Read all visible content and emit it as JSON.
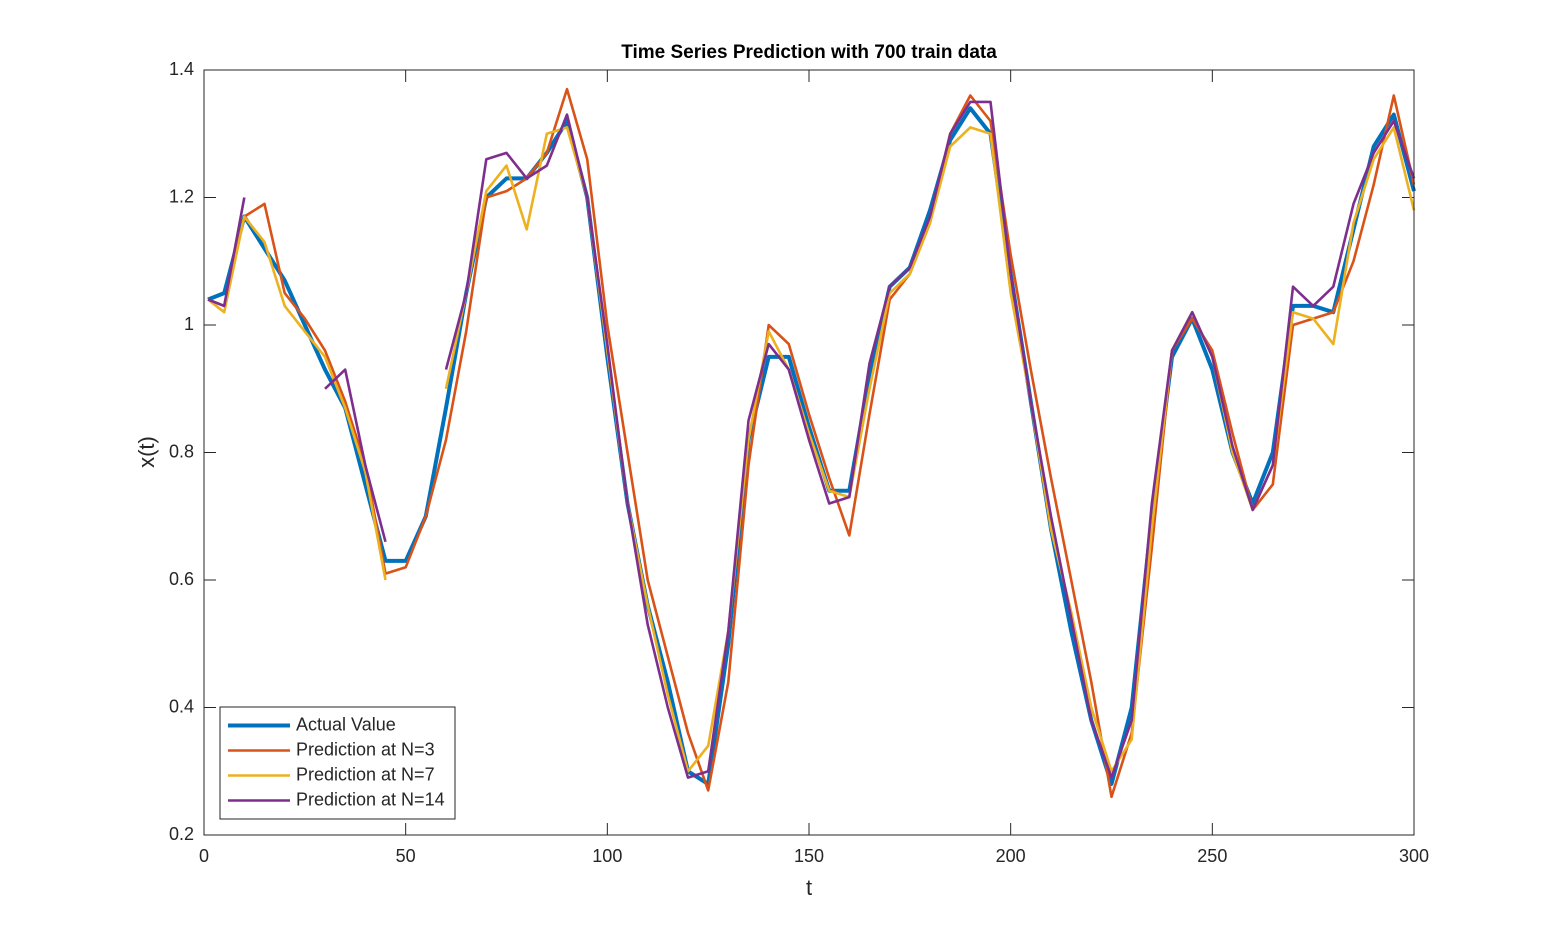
{
  "chart_data": {
    "type": "line",
    "title": "Time Series Prediction with 700 train data",
    "x_label": "t",
    "y_label": "x(t)",
    "xlim": [
      0,
      300
    ],
    "xticks": [
      0,
      50,
      100,
      150,
      200,
      250,
      300
    ],
    "ylim": [
      0.2,
      1.4
    ],
    "yticks": [
      0.2,
      0.4,
      0.6,
      0.8,
      1,
      1.2,
      1.4
    ],
    "legend": "lower left",
    "grid": false,
    "x": [
      1,
      5,
      10,
      15,
      20,
      25,
      30,
      35,
      40,
      45,
      50,
      55,
      60,
      65,
      70,
      75,
      80,
      85,
      90,
      95,
      100,
      105,
      110,
      115,
      120,
      125,
      130,
      135,
      140,
      145,
      150,
      155,
      160,
      165,
      170,
      175,
      180,
      185,
      190,
      195,
      200,
      205,
      210,
      215,
      220,
      225,
      230,
      235,
      240,
      245,
      250,
      255,
      260,
      265,
      270,
      275,
      280,
      285,
      290,
      295,
      300
    ],
    "series": [
      {
        "name": "Actual Value",
        "color": "#0072BD",
        "values": [
          1.04,
          1.05,
          1.17,
          1.12,
          1.07,
          1.0,
          0.93,
          0.87,
          0.75,
          0.63,
          0.63,
          0.7,
          0.87,
          1.05,
          1.2,
          1.23,
          1.23,
          1.27,
          1.32,
          1.2,
          0.95,
          0.72,
          0.56,
          0.44,
          0.3,
          0.28,
          0.5,
          0.82,
          0.95,
          0.95,
          0.84,
          0.74,
          0.74,
          0.92,
          1.06,
          1.09,
          1.18,
          1.29,
          1.34,
          1.3,
          1.08,
          0.88,
          0.68,
          0.52,
          0.38,
          0.28,
          0.4,
          0.7,
          0.95,
          1.01,
          0.93,
          0.8,
          0.72,
          0.8,
          1.03,
          1.03,
          1.02,
          1.15,
          1.28,
          1.33,
          1.21
        ]
      },
      {
        "name": "Prediction at N=3",
        "color": "#D95319",
        "values": [
          1.04,
          1.03,
          1.17,
          1.19,
          1.05,
          1.01,
          0.96,
          0.88,
          0.78,
          0.61,
          0.62,
          0.7,
          0.82,
          0.99,
          1.2,
          1.21,
          1.23,
          1.27,
          1.37,
          1.26,
          1.0,
          0.8,
          0.6,
          0.48,
          0.36,
          0.27,
          0.44,
          0.78,
          1.0,
          0.97,
          0.86,
          0.76,
          0.67,
          0.86,
          1.04,
          1.08,
          1.16,
          1.3,
          1.36,
          1.32,
          1.11,
          0.93,
          0.76,
          0.6,
          0.44,
          0.26,
          0.36,
          0.65,
          0.96,
          1.01,
          0.96,
          0.83,
          0.71,
          0.75,
          1.0,
          1.01,
          1.02,
          1.1,
          1.22,
          1.36,
          1.22
        ]
      },
      {
        "name": "Prediction at N=7",
        "color": "#EDB120",
        "values": [
          1.04,
          1.02,
          1.17,
          1.13,
          1.03,
          0.99,
          0.95,
          0.87,
          0.77,
          0.6,
          null,
          null,
          0.9,
          1.05,
          1.21,
          1.25,
          1.15,
          1.3,
          1.31,
          1.2,
          0.96,
          0.72,
          0.56,
          0.42,
          0.3,
          0.34,
          0.52,
          0.82,
          0.99,
          0.93,
          0.83,
          0.74,
          0.73,
          0.9,
          1.05,
          1.08,
          1.16,
          1.28,
          1.31,
          1.3,
          1.05,
          0.88,
          0.68,
          0.55,
          0.4,
          0.3,
          0.35,
          0.68,
          0.96,
          1.02,
          0.95,
          0.8,
          0.71,
          0.78,
          1.02,
          1.01,
          0.97,
          1.16,
          1.26,
          1.31,
          1.18
        ]
      },
      {
        "name": "Prediction at N=14",
        "color": "#7E2F8E",
        "values": [
          1.04,
          1.03,
          1.2,
          null,
          null,
          null,
          0.9,
          0.93,
          0.78,
          0.66,
          null,
          null,
          0.93,
          1.05,
          1.26,
          1.27,
          1.23,
          1.25,
          1.33,
          1.2,
          0.97,
          0.72,
          0.53,
          0.4,
          0.29,
          0.3,
          0.52,
          0.85,
          0.97,
          0.93,
          0.82,
          0.72,
          0.73,
          0.94,
          1.06,
          1.09,
          1.17,
          1.3,
          1.35,
          1.35,
          1.08,
          0.88,
          0.7,
          0.54,
          0.38,
          0.29,
          0.38,
          0.72,
          0.96,
          1.02,
          0.95,
          0.81,
          0.71,
          0.78,
          1.06,
          1.03,
          1.06,
          1.19,
          1.27,
          1.32,
          1.23
        ]
      }
    ]
  }
}
